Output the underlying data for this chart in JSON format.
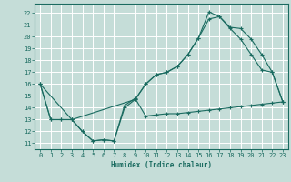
{
  "xlabel": "Humidex (Indice chaleur)",
  "bg_color": "#c5ddd8",
  "grid_color": "#ffffff",
  "line_color": "#1a6b60",
  "xlim": [
    -0.5,
    23.5
  ],
  "ylim": [
    10.5,
    22.8
  ],
  "xticks": [
    0,
    1,
    2,
    3,
    4,
    5,
    6,
    7,
    8,
    9,
    10,
    11,
    12,
    13,
    14,
    15,
    16,
    17,
    18,
    19,
    20,
    21,
    22,
    23
  ],
  "yticks": [
    11,
    12,
    13,
    14,
    15,
    16,
    17,
    18,
    19,
    20,
    21,
    22
  ],
  "line1_x": [
    0,
    1,
    2,
    3,
    4,
    5,
    6,
    7,
    8,
    9,
    10,
    11,
    12,
    13,
    14,
    15,
    16,
    17,
    18,
    19,
    20,
    21,
    22,
    23
  ],
  "line1_y": [
    16,
    13,
    13,
    13,
    12,
    11.2,
    11.3,
    11.2,
    14.2,
    14.8,
    13.3,
    13.4,
    13.5,
    13.5,
    13.6,
    13.7,
    13.8,
    13.9,
    14.0,
    14.1,
    14.2,
    14.3,
    14.4,
    14.5
  ],
  "line2_x": [
    0,
    1,
    2,
    3,
    4,
    5,
    6,
    7,
    8,
    9,
    10,
    11,
    12,
    13,
    14,
    15,
    16,
    17,
    18,
    19,
    20,
    21,
    22,
    23
  ],
  "line2_y": [
    16,
    13,
    13,
    13,
    12,
    11.2,
    11.3,
    11.2,
    14.0,
    14.7,
    16.0,
    16.8,
    17.0,
    17.5,
    18.5,
    19.9,
    22.1,
    21.7,
    20.7,
    19.8,
    18.5,
    17.2,
    17.0,
    14.5
  ],
  "line3_x": [
    0,
    3,
    9,
    10,
    11,
    12,
    13,
    14,
    15,
    16,
    17,
    18,
    19,
    20,
    21,
    22,
    23
  ],
  "line3_y": [
    16,
    13,
    14.7,
    16.0,
    16.8,
    17.0,
    17.5,
    18.5,
    19.9,
    21.5,
    21.7,
    20.8,
    20.7,
    19.8,
    18.5,
    17.0,
    14.5
  ]
}
